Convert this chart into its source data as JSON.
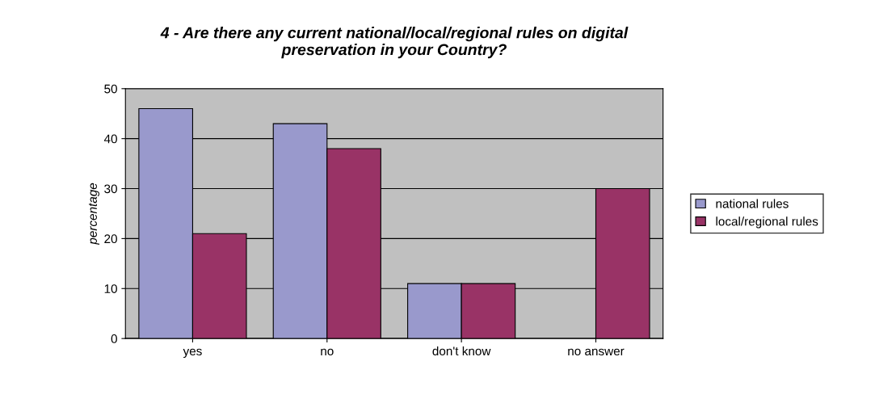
{
  "chart_data": {
    "type": "bar",
    "title": "4 - Are there any current national/local/regional rules on digital\npreservation in your Country?",
    "ylabel": "percentage",
    "categories": [
      "yes",
      "no",
      "don't know",
      "no answer"
    ],
    "series": [
      {
        "name": "national rules",
        "color": "#9999cc",
        "values": [
          46,
          43,
          11,
          null
        ]
      },
      {
        "name": "local/regional rules",
        "color": "#993366",
        "values": [
          21,
          38,
          11,
          30
        ]
      }
    ],
    "ylim": [
      0,
      50
    ],
    "yticks": [
      0,
      10,
      20,
      30,
      40,
      50
    ],
    "grid": "y",
    "legend": "right"
  }
}
